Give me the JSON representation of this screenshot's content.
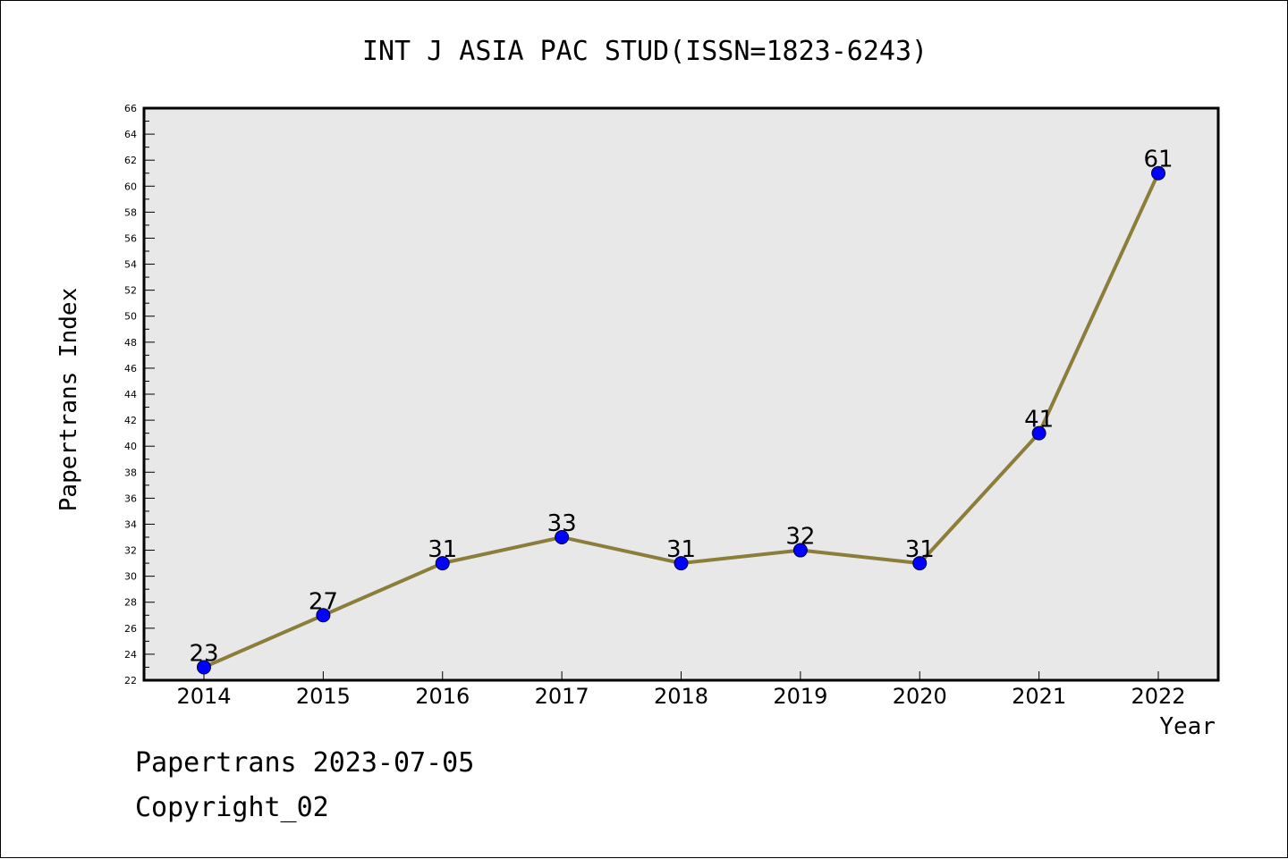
{
  "chart_data": {
    "type": "line",
    "title": "INT J ASIA PAC STUD(ISSN=1823-6243)",
    "xlabel": "Year",
    "ylabel": "Papertrans Index",
    "categories": [
      "2014",
      "2015",
      "2016",
      "2017",
      "2018",
      "2019",
      "2020",
      "2021",
      "2022"
    ],
    "series": [
      {
        "values": [
          23,
          27,
          31,
          33,
          31,
          32,
          31,
          41,
          61
        ]
      }
    ],
    "ylim": [
      22,
      66
    ],
    "yticks": [
      22,
      24,
      26,
      28,
      30,
      32,
      34,
      36,
      38,
      40,
      42,
      44,
      46,
      48,
      50,
      52,
      54,
      56,
      58,
      60,
      62,
      64,
      66
    ],
    "grid": false,
    "legend": "none",
    "colors": {
      "line": "#8b7d3a",
      "marker": "#0000ff",
      "plot_background": "#e8e8e8"
    }
  },
  "footer": {
    "line1": "Papertrans 2023-07-05",
    "line2": "Copyright_02"
  }
}
